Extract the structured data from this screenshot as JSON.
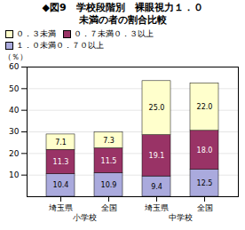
{
  "chart_data": {
    "type": "bar",
    "title": "◆図9　学校段階別　裸眼視力１．０",
    "subtitle": "未満の者の割合比較",
    "categories": [
      "埼玉県",
      "全国",
      "埼玉県",
      "全国"
    ],
    "annotations": [
      "小学校",
      "中学校"
    ],
    "series": [
      {
        "name": "１．０未満０．７０以上",
        "color": "#aaaadd",
        "values": [
          10.4,
          10.9,
          9.4,
          12.5
        ],
        "value_labels": [
          "10.4",
          "10.9",
          "9.4",
          "12.5"
        ]
      },
      {
        "name": "０．７未満０．３以上",
        "color": "#993366",
        "values": [
          11.3,
          11.5,
          19.1,
          18.0
        ],
        "value_labels": [
          "11.3",
          "11.5",
          "19.1",
          "18.0"
        ]
      },
      {
        "name": "０．３未満",
        "color": "#ffffcc",
        "values": [
          7.1,
          7.3,
          25.0,
          22.0
        ],
        "value_labels": [
          "7.1",
          "7.3",
          "25.0",
          "22.0"
        ]
      }
    ],
    "stacked": true,
    "data_labels": true,
    "ylabel": "（％）",
    "ylim": [
      0,
      60
    ],
    "yticks": [
      10,
      20,
      30,
      40,
      50,
      60
    ],
    "grid": true,
    "legend": "upper left"
  }
}
